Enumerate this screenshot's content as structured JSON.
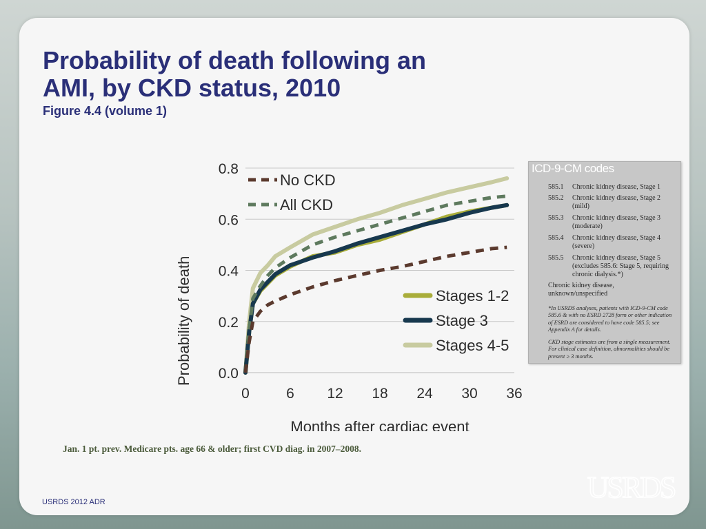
{
  "title": "Probability of death following an AMI, by CKD status, 2010",
  "subtitle": "Figure 4.4 (volume 1)",
  "chart_data": {
    "type": "line",
    "title": "Probability of death following an AMI, by CKD status, 2010",
    "xlabel": "Months after cardiac event",
    "ylabel": "Probability of death",
    "xlim": [
      0,
      36
    ],
    "ylim": [
      0,
      0.8
    ],
    "xticks": [
      0,
      6,
      12,
      18,
      24,
      30,
      36
    ],
    "yticks": [
      0.0,
      0.2,
      0.4,
      0.6,
      0.8
    ],
    "xtick_labels": [
      "0",
      "6",
      "12",
      "18",
      "24",
      "30",
      "36"
    ],
    "ytick_labels": [
      "0.0",
      "0.2",
      "0.4",
      "0.6",
      "0.8"
    ],
    "grid": "horizontal",
    "x": [
      0,
      0.5,
      1,
      2,
      3,
      4,
      6,
      9,
      12,
      15,
      18,
      21,
      24,
      27,
      30,
      33,
      35
    ],
    "series": [
      {
        "name": "No CKD",
        "style": "dashed",
        "color": "#5b3a2e",
        "values": [
          0.0,
          0.12,
          0.2,
          0.24,
          0.265,
          0.28,
          0.305,
          0.335,
          0.36,
          0.38,
          0.4,
          0.415,
          0.435,
          0.455,
          0.47,
          0.485,
          0.49
        ]
      },
      {
        "name": "All CKD",
        "style": "dashed",
        "color": "#5e7a5e",
        "values": [
          0.0,
          0.17,
          0.29,
          0.34,
          0.38,
          0.41,
          0.45,
          0.5,
          0.53,
          0.555,
          0.58,
          0.605,
          0.63,
          0.655,
          0.67,
          0.685,
          0.69
        ]
      },
      {
        "name": "Stages 1-2",
        "style": "solid",
        "color": "#a9ad3a",
        "values": [
          0.0,
          0.16,
          0.27,
          0.32,
          0.35,
          0.38,
          0.415,
          0.455,
          0.47,
          0.5,
          0.52,
          0.55,
          0.58,
          0.61,
          0.63,
          0.645,
          0.655
        ]
      },
      {
        "name": "Stage 3",
        "style": "solid",
        "color": "#17384e",
        "values": [
          0.0,
          0.16,
          0.27,
          0.325,
          0.355,
          0.385,
          0.42,
          0.45,
          0.475,
          0.505,
          0.53,
          0.555,
          0.58,
          0.6,
          0.625,
          0.645,
          0.655
        ]
      },
      {
        "name": "Stages 4-5",
        "style": "solid",
        "color": "#c8cba0",
        "values": [
          0.0,
          0.2,
          0.33,
          0.39,
          0.42,
          0.455,
          0.49,
          0.54,
          0.57,
          0.6,
          0.625,
          0.655,
          0.68,
          0.705,
          0.725,
          0.745,
          0.76
        ]
      }
    ],
    "legend_top": [
      "No CKD",
      "All CKD"
    ],
    "legend_bottom": [
      "Stages 1-2",
      "Stage 3",
      "Stages 4-5"
    ]
  },
  "icd": {
    "title": "ICD-9-CM codes",
    "rows": [
      {
        "code": "585.1",
        "desc": "Chronic kidney disease, Stage 1"
      },
      {
        "code": "585.2",
        "desc": "Chronic kidney disease, Stage 2 (mild)"
      },
      {
        "code": "585.3",
        "desc": "Chronic kidney disease, Stage 3 (moderate)"
      },
      {
        "code": "585.4",
        "desc": "Chronic kidney disease, Stage 4 (severe)"
      },
      {
        "code": "585.5",
        "desc": "Chronic kidney disease, Stage 5 (excludes 585.6: Stage 5, requiring chronic dialysis.*)"
      }
    ],
    "unknown": "Chronic kidney disease, unknown/unspecified",
    "note1": "*In USRDS analyses, patients with ICD-9-CM code 585.6 & with no ESRD 2728 form or other indication of ESRD are considered to have code 585.5; see Appendix A for details.",
    "note2": "CKD stage estimates are from a single measurement. For clinical case definition, abnormalities should be present ≥ 3 months."
  },
  "footnote": "Jan. 1 pt. prev. Medicare pts. age 66 & older;  first CVD diag. in 2007–2008.",
  "footer": "USRDS 2012 ADR",
  "logo_text": "USRDS",
  "colors": {
    "title": "#2a2f78",
    "footnote": "#4a5a3a",
    "grid": "#c8c8c8"
  }
}
